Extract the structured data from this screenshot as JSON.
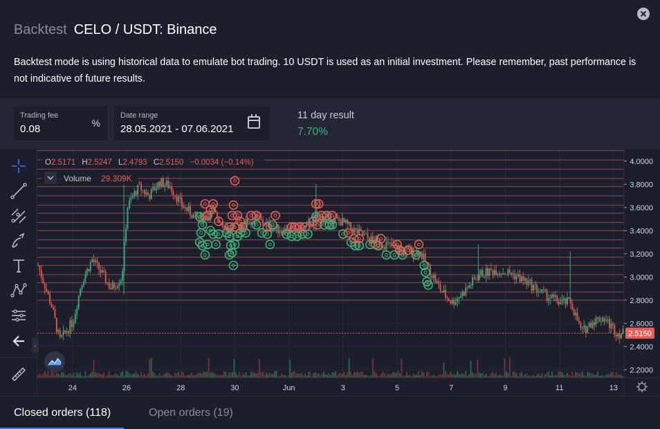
{
  "header": {
    "title_prefix": "Backtest",
    "title": "CELO / USDT: Binance",
    "description": "Backtest mode is using historical data to emulate bot trading. 10 USDT is used as an initial investment. Please remember, past performance is not indicative of future results."
  },
  "controls": {
    "fee": {
      "label": "Trading fee",
      "value": "0.08",
      "unit": "%"
    },
    "range": {
      "label": "Date range",
      "value": "28.05.2021 - 07.06.2021"
    },
    "result": {
      "label": "11 day result",
      "value": "7.70%"
    }
  },
  "chart_header": {
    "ohlc_o": "O",
    "ohlc_o_val": "2.5171",
    "ohlc_h": "H",
    "ohlc_h_val": "2.5247",
    "ohlc_l": "L",
    "ohlc_l_val": "2.4793",
    "ohlc_c": "C",
    "ohlc_c_val": "2.5150",
    "change": "−0.0034 (−0.14%)",
    "volume_label": "Volume",
    "volume_value": "29.309K"
  },
  "chart_data": {
    "type": "candlestick",
    "symbol": "CELO / USDT",
    "x_ticks": [
      "24",
      "26",
      "28",
      "30",
      "Jun",
      "3",
      "5",
      "7",
      "9",
      "11",
      "13"
    ],
    "y_ticks": [
      4.0,
      3.8,
      3.6,
      3.4,
      3.2,
      3.0,
      2.8,
      2.6,
      2.4,
      2.2
    ],
    "ylim": [
      2.13,
      4.1
    ],
    "last_price": "2.5150",
    "grid_levels": [
      4.09,
      4.01,
      3.93,
      3.85,
      3.78,
      3.7,
      3.62,
      3.55,
      3.47,
      3.4,
      3.32,
      3.25,
      3.17,
      3.1,
      3.02,
      2.95,
      2.87,
      2.8
    ],
    "sell_orders": [
      [
        28.9,
        3.63
      ],
      [
        29.1,
        3.58
      ],
      [
        29.2,
        3.63
      ],
      [
        29.0,
        3.53
      ],
      [
        29.4,
        3.48
      ],
      [
        29.8,
        3.43
      ],
      [
        30.0,
        3.83
      ],
      [
        29.95,
        3.62
      ],
      [
        29.9,
        3.53
      ],
      [
        30.1,
        3.53
      ],
      [
        30.0,
        3.43
      ],
      [
        30.2,
        3.48
      ],
      [
        30.3,
        3.43
      ],
      [
        30.6,
        3.53
      ],
      [
        30.8,
        3.53
      ],
      [
        31.2,
        3.43
      ],
      [
        31.5,
        3.53
      ],
      [
        32.1,
        3.43
      ],
      [
        32.2,
        3.43
      ],
      [
        32.4,
        3.43
      ],
      [
        32.6,
        3.43
      ],
      [
        32.9,
        3.48
      ],
      [
        33.0,
        3.63
      ],
      [
        33.05,
        3.45
      ],
      [
        33.1,
        3.63
      ],
      [
        33.2,
        3.53
      ],
      [
        33.4,
        3.53
      ],
      [
        33.6,
        3.53
      ],
      [
        34.2,
        3.38
      ],
      [
        34.4,
        3.33
      ],
      [
        34.6,
        3.33
      ],
      [
        35.2,
        3.28
      ],
      [
        35.4,
        3.33
      ],
      [
        36.0,
        3.28
      ],
      [
        36.1,
        3.23
      ],
      [
        36.4,
        3.23
      ],
      [
        36.8,
        3.28
      ]
    ],
    "buy_orders": [
      [
        28.7,
        3.52
      ],
      [
        28.8,
        3.45
      ],
      [
        28.75,
        3.38
      ],
      [
        28.7,
        3.3
      ],
      [
        28.8,
        3.27
      ],
      [
        28.9,
        3.19
      ],
      [
        29.0,
        3.28
      ],
      [
        29.1,
        3.4
      ],
      [
        29.2,
        3.37
      ],
      [
        29.3,
        3.28
      ],
      [
        29.4,
        3.37
      ],
      [
        29.7,
        3.38
      ],
      [
        29.8,
        3.35
      ],
      [
        29.85,
        3.27
      ],
      [
        29.9,
        3.21
      ],
      [
        29.8,
        3.19
      ],
      [
        29.95,
        3.1
      ],
      [
        30.0,
        3.28
      ],
      [
        30.1,
        3.35
      ],
      [
        30.2,
        3.38
      ],
      [
        30.4,
        3.38
      ],
      [
        30.8,
        3.45
      ],
      [
        31.0,
        3.38
      ],
      [
        31.2,
        3.37
      ],
      [
        31.3,
        3.28
      ],
      [
        31.4,
        3.45
      ],
      [
        31.9,
        3.37
      ],
      [
        32.1,
        3.35
      ],
      [
        32.3,
        3.35
      ],
      [
        32.5,
        3.37
      ],
      [
        32.7,
        3.37
      ],
      [
        33.0,
        3.52
      ],
      [
        33.3,
        3.45
      ],
      [
        33.5,
        3.45
      ],
      [
        33.6,
        3.45
      ],
      [
        34.0,
        3.37
      ],
      [
        34.3,
        3.3
      ],
      [
        34.45,
        3.27
      ],
      [
        34.6,
        3.27
      ],
      [
        35.0,
        3.28
      ],
      [
        35.3,
        3.27
      ],
      [
        35.6,
        3.19
      ],
      [
        35.9,
        3.19
      ],
      [
        36.2,
        3.19
      ],
      [
        36.7,
        3.19
      ],
      [
        37.0,
        3.1
      ],
      [
        37.05,
        3.04
      ],
      [
        37.1,
        2.96
      ],
      [
        37.15,
        2.93
      ]
    ]
  },
  "tabs": {
    "closed": "Closed orders (118)",
    "open": "Open orders (19)"
  }
}
